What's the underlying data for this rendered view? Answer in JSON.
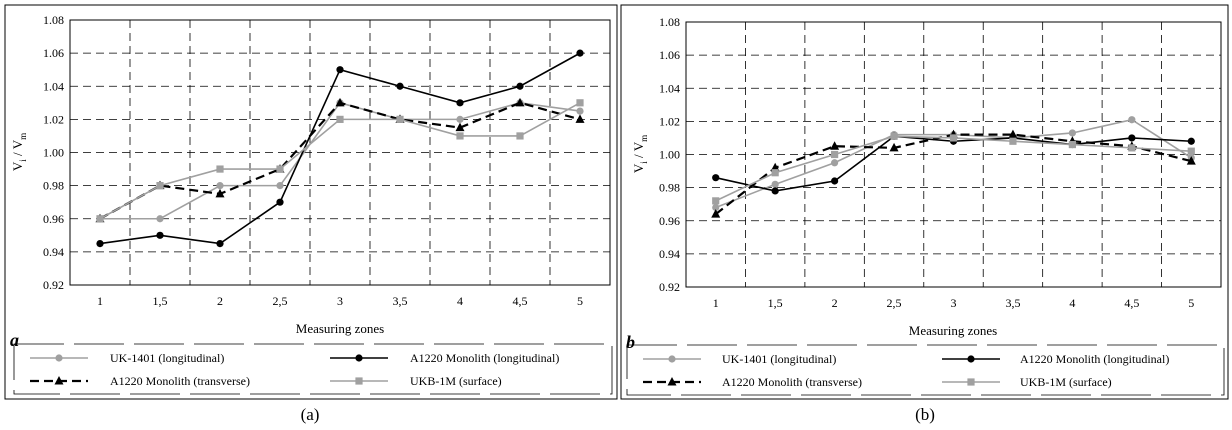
{
  "captions": [
    "(a)",
    "(b)"
  ],
  "chart_data": [
    {
      "type": "line",
      "panel_letter": "a",
      "xlabel": "Measuring zones",
      "ylabel": "V_i / V_m",
      "ylim": [
        0.92,
        1.08
      ],
      "yticks": [
        "0.92",
        "0.94",
        "0.96",
        "0.98",
        "1.00",
        "1.02",
        "1.04",
        "1.06",
        "1.08"
      ],
      "categories": [
        "1",
        "1,5",
        "2",
        "2,5",
        "3",
        "3,5",
        "4",
        "4,5",
        "5"
      ],
      "grid": true,
      "legend_position": "bottom",
      "series": [
        {
          "name": "UK-1401 (longitudinal)",
          "color": "#a0a0a0",
          "marker": "circle",
          "dash": "solid",
          "values": [
            0.96,
            0.96,
            0.98,
            0.98,
            1.03,
            1.02,
            1.02,
            1.03,
            1.025
          ]
        },
        {
          "name": "A1220 Monolith (longitudinal)",
          "color": "#000000",
          "marker": "circle",
          "dash": "solid",
          "values": [
            0.945,
            0.95,
            0.945,
            0.97,
            1.05,
            1.04,
            1.03,
            1.04,
            1.06
          ]
        },
        {
          "name": "A1220 Monolith (transverse)",
          "color": "#000000",
          "marker": "triangle",
          "dash": "dashed",
          "values": [
            0.96,
            0.98,
            0.975,
            0.99,
            1.03,
            1.02,
            1.015,
            1.03,
            1.02
          ]
        },
        {
          "name": "UKB-1M (surface)",
          "color": "#a0a0a0",
          "marker": "square",
          "dash": "solid",
          "values": [
            0.96,
            0.98,
            0.99,
            0.99,
            1.02,
            1.02,
            1.01,
            1.01,
            1.03
          ]
        }
      ]
    },
    {
      "type": "line",
      "panel_letter": "b",
      "xlabel": "Measuring zones",
      "ylabel": "V_i / V_m",
      "ylim": [
        0.92,
        1.08
      ],
      "yticks": [
        "0.92",
        "0.94",
        "0.96",
        "0.98",
        "1.00",
        "1.02",
        "1.04",
        "1.06",
        "1.08"
      ],
      "categories": [
        "1",
        "1,5",
        "2",
        "2,5",
        "3",
        "3,5",
        "4",
        "4,5",
        "5"
      ],
      "grid": true,
      "legend_position": "bottom",
      "series": [
        {
          "name": "UK-1401 (longitudinal)",
          "color": "#a0a0a0",
          "marker": "circle",
          "dash": "solid",
          "values": [
            0.968,
            0.982,
            0.995,
            1.012,
            1.012,
            1.01,
            1.013,
            1.021,
            0.998
          ]
        },
        {
          "name": "A1220 Monolith (longitudinal)",
          "color": "#000000",
          "marker": "circle",
          "dash": "solid",
          "values": [
            0.986,
            0.978,
            0.984,
            1.011,
            1.008,
            1.01,
            1.006,
            1.01,
            1.008
          ]
        },
        {
          "name": "A1220 Monolith (transverse)",
          "color": "#000000",
          "marker": "triangle",
          "dash": "dashed",
          "values": [
            0.964,
            0.992,
            1.005,
            1.004,
            1.012,
            1.012,
            1.008,
            1.005,
            0.996
          ]
        },
        {
          "name": "UKB-1M (surface)",
          "color": "#a0a0a0",
          "marker": "square",
          "dash": "solid",
          "values": [
            0.972,
            0.989,
            1.0,
            1.011,
            1.01,
            1.008,
            1.006,
            1.004,
            1.002
          ]
        }
      ]
    }
  ]
}
